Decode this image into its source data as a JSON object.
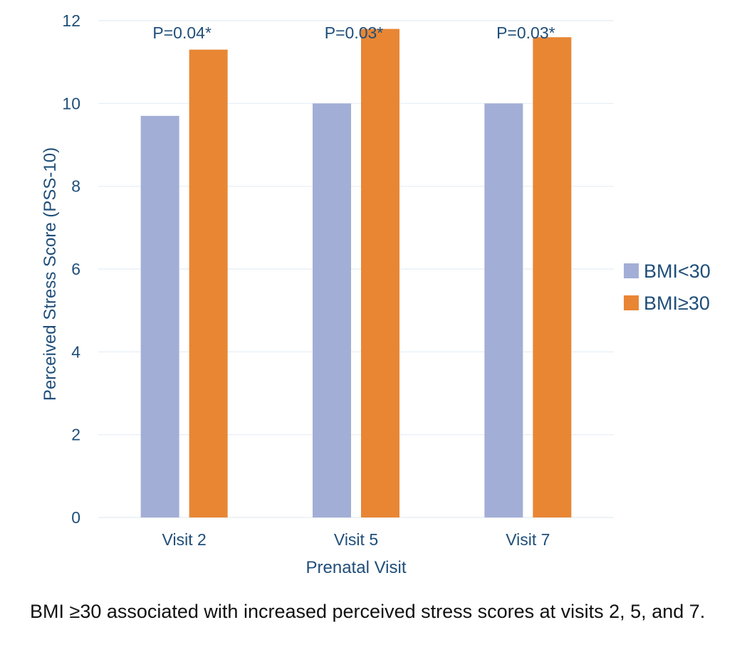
{
  "chart_data": {
    "type": "bar",
    "categories": [
      "Visit 2",
      "Visit 5",
      "Visit 7"
    ],
    "series": [
      {
        "name": "BMI<30",
        "color": "#A3AED6",
        "values": [
          9.7,
          10.0,
          10.0
        ]
      },
      {
        "name": "BMI≥30",
        "color": "#E88634",
        "values": [
          11.3,
          11.8,
          11.6
        ]
      }
    ],
    "annotations": [
      "P=0.04*",
      "P=0.03*",
      "P=0.03*"
    ],
    "xlabel": "Prenatal Visit",
    "ylabel": "Perceived Stress Score (PSS-10)",
    "ylim": [
      0,
      12
    ],
    "yticks": [
      0,
      2,
      4,
      6,
      8,
      10,
      12
    ],
    "grid": true,
    "legend_position": "right",
    "text_color": "#1F4E79",
    "grid_color": "#E4EEF4"
  },
  "caption": "BMI ≥30 associated with increased perceived stress scores at visits 2, 5, and 7."
}
